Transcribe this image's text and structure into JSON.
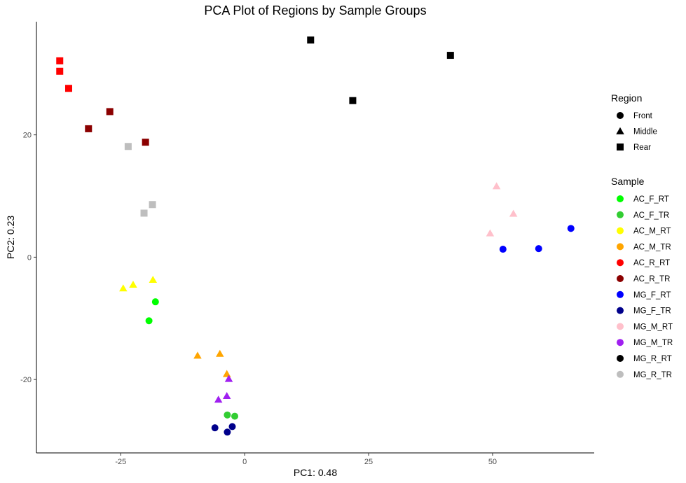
{
  "chart_data": {
    "type": "scatter",
    "title": "PCA Plot of Regions by Sample Groups",
    "xlabel": "PC1: 0.48",
    "ylabel": "PC2: 0.23",
    "xlim": [
      -42,
      70.5
    ],
    "ylim": [
      -32,
      38.5
    ],
    "xticks": [
      -25,
      0,
      25,
      50
    ],
    "yticks": [
      -20,
      0,
      20
    ],
    "grid": false,
    "legend_placement": "right",
    "shape_legend": {
      "title": "Region",
      "entries": [
        {
          "label": "Front",
          "shape": "circle"
        },
        {
          "label": "Middle",
          "shape": "triangle"
        },
        {
          "label": "Rear",
          "shape": "square"
        }
      ]
    },
    "color_legend": {
      "title": "Sample",
      "entries": [
        {
          "label": "AC_F_RT",
          "color": "#00ff00"
        },
        {
          "label": "AC_F_TR",
          "color": "#32cd32"
        },
        {
          "label": "AC_M_RT",
          "color": "#ffff00"
        },
        {
          "label": "AC_M_TR",
          "color": "#ffa500"
        },
        {
          "label": "AC_R_RT",
          "color": "#ff0000"
        },
        {
          "label": "AC_R_TR",
          "color": "#8b0000"
        },
        {
          "label": "MG_F_RT",
          "color": "#0000ff"
        },
        {
          "label": "MG_F_TR",
          "color": "#00008b"
        },
        {
          "label": "MG_M_RT",
          "color": "#ffc0cb"
        },
        {
          "label": "MG_M_TR",
          "color": "#a020f0"
        },
        {
          "label": "MG_R_RT",
          "color": "#000000"
        },
        {
          "label": "MG_R_TR",
          "color": "#bebebe"
        }
      ]
    },
    "series": [
      {
        "name": "AC_F_RT",
        "shape": "circle",
        "points": [
          [
            -18,
            -7.3
          ],
          [
            -19.3,
            -10.4
          ]
        ]
      },
      {
        "name": "AC_F_TR",
        "shape": "circle",
        "points": [
          [
            -3.5,
            -25.8
          ],
          [
            -2,
            -26
          ]
        ]
      },
      {
        "name": "AC_M_RT",
        "shape": "triangle",
        "points": [
          [
            -24.5,
            -5.1
          ],
          [
            -22.5,
            -4.5
          ],
          [
            -18.5,
            -3.7
          ]
        ]
      },
      {
        "name": "AC_M_TR",
        "shape": "triangle",
        "points": [
          [
            -9.5,
            -16.1
          ],
          [
            -5,
            -15.8
          ],
          [
            -3.6,
            -19.1
          ]
        ]
      },
      {
        "name": "AC_R_RT",
        "shape": "square",
        "points": [
          [
            -37.3,
            32.1
          ],
          [
            -37.3,
            30.4
          ],
          [
            -35.5,
            27.6
          ]
        ]
      },
      {
        "name": "AC_R_TR",
        "shape": "square",
        "points": [
          [
            -27.2,
            23.8
          ],
          [
            -31.5,
            21
          ],
          [
            -20,
            18.8
          ]
        ]
      },
      {
        "name": "MG_F_RT",
        "shape": "circle",
        "points": [
          [
            52.1,
            1.3
          ],
          [
            59.3,
            1.4
          ],
          [
            65.8,
            4.7
          ]
        ]
      },
      {
        "name": "MG_F_TR",
        "shape": "circle",
        "points": [
          [
            -6,
            -27.9
          ],
          [
            -2.5,
            -27.7
          ],
          [
            -3.5,
            -28.6
          ]
        ]
      },
      {
        "name": "MG_M_RT",
        "shape": "triangle",
        "points": [
          [
            50.8,
            11.6
          ],
          [
            54.2,
            7.1
          ],
          [
            49.5,
            3.9
          ]
        ]
      },
      {
        "name": "MG_M_TR",
        "shape": "triangle",
        "points": [
          [
            -3.2,
            -19.9
          ],
          [
            -3.6,
            -22.7
          ],
          [
            -5.3,
            -23.3
          ]
        ]
      },
      {
        "name": "MG_R_RT",
        "shape": "square",
        "points": [
          [
            13.3,
            35.5
          ],
          [
            41.5,
            33
          ],
          [
            21.8,
            25.6
          ]
        ]
      },
      {
        "name": "MG_R_TR",
        "shape": "square",
        "points": [
          [
            -23.5,
            18.1
          ],
          [
            -18.6,
            8.6
          ],
          [
            -20.3,
            7.2
          ]
        ]
      }
    ]
  }
}
